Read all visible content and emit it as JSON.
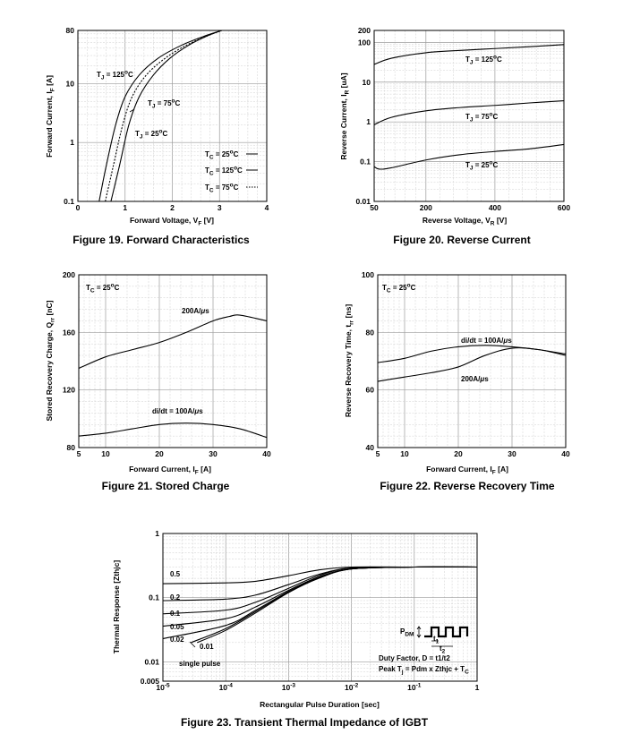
{
  "chart_data": [
    {
      "id": "fig19",
      "type": "line",
      "title": "Figure 19. Forward Characteristics",
      "xlabel": "Forward Voltage, V<sub>F</sub> [V]",
      "ylabel": "Forward Current, I<sub>F</sub> [A]",
      "xlim": [
        0,
        4
      ],
      "ylim": [
        0.1,
        80
      ],
      "ylog": true,
      "xticks": [
        "0",
        "1",
        "2",
        "3",
        "4"
      ],
      "yticks": [
        "0.1",
        "1",
        "10",
        "80"
      ],
      "legend": [
        "T<sub>C</sub> = 25<sup>o</sup>C",
        "T<sub>C</sub> = 125<sup>o</sup>C",
        "T<sub>C</sub> = 75<sup>o</sup>C"
      ],
      "legend_styles": [
        "solid",
        "solid",
        "dotted"
      ],
      "series": [
        {
          "name": "T<sub>J</sub> = 125<sup>o</sup>C",
          "style": "solid",
          "points": [
            [
              0.45,
              0.1
            ],
            [
              0.6,
              0.4
            ],
            [
              0.8,
              2
            ],
            [
              1.0,
              6
            ],
            [
              1.3,
              14
            ],
            [
              1.7,
              27
            ],
            [
              2.2,
              45
            ],
            [
              2.7,
              65
            ],
            [
              3.05,
              80
            ]
          ]
        },
        {
          "name": "T<sub>J</sub> = 75<sup>o</sup>C",
          "style": "dotted",
          "points": [
            [
              0.58,
              0.1
            ],
            [
              0.75,
              0.4
            ],
            [
              0.95,
              2
            ],
            [
              1.15,
              6
            ],
            [
              1.45,
              14
            ],
            [
              1.85,
              27
            ],
            [
              2.3,
              45
            ],
            [
              2.75,
              65
            ],
            [
              3.05,
              80
            ]
          ]
        },
        {
          "name": "T<sub>J</sub> = 25<sup>o</sup>C",
          "style": "solid",
          "points": [
            [
              0.7,
              0.1
            ],
            [
              0.88,
              0.4
            ],
            [
              1.08,
              2
            ],
            [
              1.3,
              6
            ],
            [
              1.6,
              14
            ],
            [
              1.95,
              27
            ],
            [
              2.35,
              45
            ],
            [
              2.75,
              65
            ],
            [
              3.05,
              80
            ]
          ]
        }
      ]
    },
    {
      "id": "fig20",
      "type": "line",
      "title": "Figure 20. Reverse Current",
      "xlabel": "Reverse Voltage, V<sub>R</sub> [V]",
      "ylabel": "Reverse Current, I<sub>R</sub> [uA]",
      "xlim": [
        50,
        600
      ],
      "ylim": [
        0.01,
        200
      ],
      "ylog": true,
      "xticks": [
        "50",
        "200",
        "400",
        "600"
      ],
      "yticks": [
        "0.01",
        "0.1",
        "1",
        "10",
        "100",
        "200"
      ],
      "series": [
        {
          "name": "T<sub>J</sub> = 125<sup>o</sup>C",
          "points": [
            [
              50,
              28
            ],
            [
              100,
              40
            ],
            [
              200,
              55
            ],
            [
              300,
              63
            ],
            [
              400,
              70
            ],
            [
              500,
              78
            ],
            [
              600,
              88
            ]
          ]
        },
        {
          "name": "T<sub>J</sub> = 75<sup>o</sup>C",
          "points": [
            [
              50,
              0.85
            ],
            [
              100,
              1.3
            ],
            [
              200,
              1.9
            ],
            [
              300,
              2.3
            ],
            [
              400,
              2.6
            ],
            [
              500,
              3.0
            ],
            [
              600,
              3.4
            ]
          ]
        },
        {
          "name": "T<sub>J</sub> = 25<sup>o</sup>C",
          "points": [
            [
              50,
              0.075
            ],
            [
              65,
              0.065
            ],
            [
              100,
              0.07
            ],
            [
              200,
              0.11
            ],
            [
              300,
              0.15
            ],
            [
              400,
              0.18
            ],
            [
              500,
              0.21
            ],
            [
              600,
              0.27
            ]
          ]
        }
      ]
    },
    {
      "id": "fig21",
      "type": "line",
      "title": "Figure 21. Stored Charge",
      "xlabel": "Forward Current, I<sub>F</sub> [A]",
      "ylabel": "Stored Recovery Charge, Q<sub>rr</sub> [nC]",
      "xlim": [
        5,
        40
      ],
      "ylim": [
        80,
        200
      ],
      "xticks": [
        "5",
        "10",
        "20",
        "30",
        "40"
      ],
      "yticks": [
        "80",
        "120",
        "160",
        "200"
      ],
      "note": "T<sub>C</sub> = 25<sup>o</sup>C",
      "series": [
        {
          "name": "200A/<i>μ</i>s",
          "points": [
            [
              5,
              135
            ],
            [
              10,
              143
            ],
            [
              15,
              148
            ],
            [
              20,
              153
            ],
            [
              25,
              160
            ],
            [
              30,
              168
            ],
            [
              33,
              171
            ],
            [
              35,
              172
            ],
            [
              40,
              168
            ]
          ]
        },
        {
          "name": "di/dt = 100A/<i>μ</i>s",
          "points": [
            [
              5,
              88
            ],
            [
              10,
              90
            ],
            [
              15,
              93
            ],
            [
              20,
              96
            ],
            [
              25,
              97
            ],
            [
              30,
              96
            ],
            [
              35,
              93
            ],
            [
              40,
              87
            ]
          ]
        }
      ]
    },
    {
      "id": "fig22",
      "type": "line",
      "title": "Figure 22. Reverse Recovery Time",
      "xlabel": "Forward Current, I<sub>F</sub> [A]",
      "ylabel": "Reverse Recovery Time, t<sub>rr</sub> [ns]",
      "xlim": [
        5,
        40
      ],
      "ylim": [
        40,
        100
      ],
      "xticks": [
        "5",
        "10",
        "20",
        "30",
        "40"
      ],
      "yticks": [
        "40",
        "60",
        "80",
        "100"
      ],
      "note": "T<sub>C</sub> = 25<sup>o</sup>C",
      "series": [
        {
          "name": "di/dt = 100A/<i>μ</i>s",
          "points": [
            [
              5,
              69.5
            ],
            [
              10,
              71
            ],
            [
              15,
              73.5
            ],
            [
              20,
              75
            ],
            [
              25,
              75.5
            ],
            [
              30,
              75
            ],
            [
              35,
              74
            ],
            [
              40,
              72.5
            ]
          ]
        },
        {
          "name": "200A/<i>μ</i>s",
          "points": [
            [
              5,
              63
            ],
            [
              10,
              64.5
            ],
            [
              15,
              66
            ],
            [
              20,
              68
            ],
            [
              25,
              72
            ],
            [
              30,
              74.5
            ],
            [
              35,
              74
            ],
            [
              40,
              72
            ]
          ]
        }
      ]
    },
    {
      "id": "fig23",
      "type": "line",
      "title": "Figure 23. Transient Thermal Impedance of IGBT",
      "xlabel": "Rectangular Pulse Duration [sec]",
      "ylabel": "Thermal Response [Zthjc]",
      "xlog": true,
      "ylog": true,
      "xlim": [
        1e-05,
        1
      ],
      "ylim": [
        0.005,
        1
      ],
      "xticks": [
        "10<sup>-5</sup>",
        "10<sup>-4</sup>",
        "10<sup>-3</sup>",
        "10<sup>-2</sup>",
        "10<sup>-1</sup>",
        "1"
      ],
      "yticks": [
        "0.005",
        "0.01",
        "0.1",
        "1"
      ],
      "inset_labels": [
        "P<sub>DM</sub>",
        "t<sub>1</sub>",
        "t<sub>2</sub>"
      ],
      "notes": [
        "Duty Factor, D = t1/t2",
        "Peak T<sub>j</sub> = Pdm x Zthjc + T<sub>C</sub>"
      ],
      "series": [
        {
          "name": "0.5",
          "points": [
            [
              1e-05,
              0.165
            ],
            [
              0.0001,
              0.17
            ],
            [
              0.0003,
              0.18
            ],
            [
              0.001,
              0.22
            ],
            [
              0.003,
              0.27
            ],
            [
              0.01,
              0.3
            ],
            [
              0.1,
              0.3
            ],
            [
              1,
              0.3
            ]
          ]
        },
        {
          "name": "0.2",
          "points": [
            [
              1e-05,
              0.09
            ],
            [
              0.0001,
              0.095
            ],
            [
              0.0003,
              0.11
            ],
            [
              0.001,
              0.16
            ],
            [
              0.003,
              0.23
            ],
            [
              0.01,
              0.29
            ],
            [
              0.1,
              0.3
            ],
            [
              1,
              0.3
            ]
          ]
        },
        {
          "name": "0.1",
          "points": [
            [
              1e-05,
              0.056
            ],
            [
              0.0001,
              0.064
            ],
            [
              0.0003,
              0.085
            ],
            [
              0.001,
              0.14
            ],
            [
              0.003,
              0.22
            ],
            [
              0.01,
              0.29
            ],
            [
              0.1,
              0.3
            ],
            [
              1,
              0.3
            ]
          ]
        },
        {
          "name": "0.05",
          "points": [
            [
              1e-05,
              0.036
            ],
            [
              0.0001,
              0.047
            ],
            [
              0.0003,
              0.072
            ],
            [
              0.001,
              0.13
            ],
            [
              0.003,
              0.21
            ],
            [
              0.01,
              0.28
            ],
            [
              0.1,
              0.3
            ],
            [
              1,
              0.3
            ]
          ]
        },
        {
          "name": "0.02",
          "points": [
            [
              1e-05,
              0.023
            ],
            [
              0.0001,
              0.037
            ],
            [
              0.0003,
              0.064
            ],
            [
              0.001,
              0.125
            ],
            [
              0.003,
              0.205
            ],
            [
              0.01,
              0.28
            ],
            [
              0.1,
              0.3
            ],
            [
              1,
              0.3
            ]
          ]
        },
        {
          "name": "0.01",
          "points": [
            [
              2.8e-05,
              0.02
            ],
            [
              0.0001,
              0.033
            ],
            [
              0.0003,
              0.061
            ],
            [
              0.001,
              0.122
            ],
            [
              0.003,
              0.2
            ],
            [
              0.01,
              0.28
            ],
            [
              0.1,
              0.3
            ],
            [
              1,
              0.3
            ]
          ]
        },
        {
          "name": "single pulse",
          "points": [
            [
              3.5e-05,
              0.02
            ],
            [
              0.0001,
              0.031
            ],
            [
              0.0003,
              0.058
            ],
            [
              0.001,
              0.12
            ],
            [
              0.003,
              0.2
            ],
            [
              0.01,
              0.28
            ],
            [
              0.1,
              0.3
            ],
            [
              1,
              0.3
            ]
          ]
        }
      ]
    }
  ]
}
